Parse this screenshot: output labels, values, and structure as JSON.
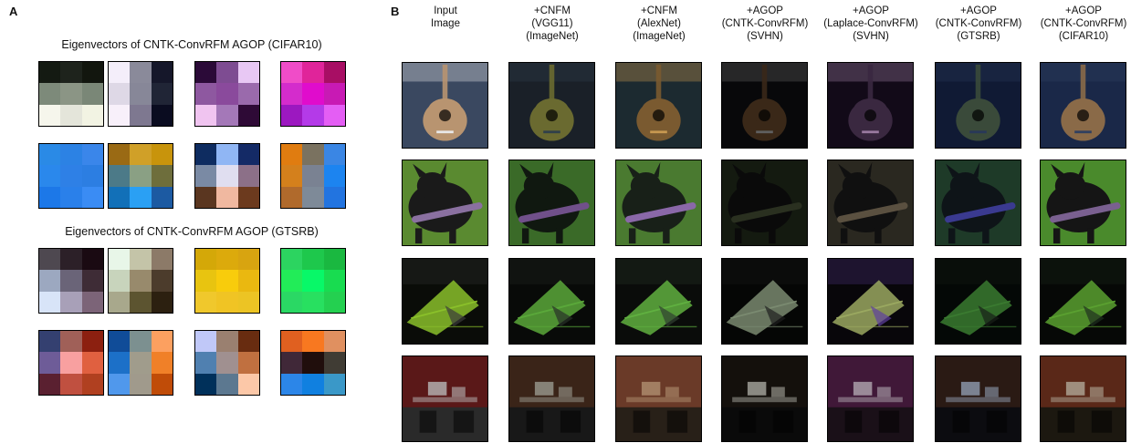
{
  "panel_a": {
    "letter": "A",
    "sections": [
      {
        "title": "Eigenvectors of CNTK-ConvRFM AGOP (CIFAR10)",
        "patches": [
          [
            "#141a12",
            "#1e231c",
            "#12160e",
            "#7d8a7a",
            "#8b9585",
            "#7a8777",
            "#f6f6ec",
            "#e4e5da",
            "#f2f3e3"
          ],
          [
            "#f4eefa",
            "#8a8a9a",
            "#15172a",
            "#ded8e6",
            "#878798",
            "#202536",
            "#f8f0fa",
            "#7e7890",
            "#0a0c20"
          ],
          [
            "#2b0a38",
            "#7e4c92",
            "#e8c8f4",
            "#8e58a0",
            "#8a4a9c",
            "#9a6aac",
            "#f0c4f0",
            "#a478b8",
            "#2e0a36"
          ],
          [
            "#f04cc8",
            "#e0249a",
            "#a80e64",
            "#d42ccc",
            "#e00ccc",
            "#c81ab4",
            "#9c18c0",
            "#b43ae8",
            "#e45ef4"
          ],
          [
            "#2a8ae6",
            "#2c82e4",
            "#3a86ea",
            "#2a88ec",
            "#2e80e6",
            "#2c7ee2",
            "#1c78e8",
            "#2a80ea",
            "#3a8cf4"
          ],
          [
            "#9a6a14",
            "#d0a028",
            "#c8940c",
            "#4c7a88",
            "#8aa084",
            "#6e6e3c",
            "#1270b8",
            "#2aa0f4",
            "#1c5aa2"
          ],
          [
            "#0e2c60",
            "#90b6f4",
            "#142a66",
            "#7a8aa4",
            "#e0def0",
            "#8c7088",
            "#5a3620",
            "#f0b8a0",
            "#6c3a1e"
          ],
          [
            "#e07c10",
            "#7a7260",
            "#3a86e4",
            "#d4801c",
            "#7a8292",
            "#1c84f0",
            "#b06a2c",
            "#7e8a98",
            "#2274e0"
          ]
        ]
      },
      {
        "title": "Eigenvectors of CNTK-ConvRFM AGOP (GTSRB)",
        "patches": [
          [
            "#4e4850",
            "#2c2028",
            "#1a0a12",
            "#9ca8c0",
            "#6a6478",
            "#3e2c36",
            "#d8e4f8",
            "#a8a0b8",
            "#7c6478"
          ],
          [
            "#e8f6e8",
            "#c4c4a8",
            "#8c7a68",
            "#c8d4bc",
            "#988a6c",
            "#4c3c2c",
            "#a8a88c",
            "#5c5430",
            "#2c2010"
          ],
          [
            "#d4a808",
            "#dcaa0c",
            "#d8a410",
            "#e8c410",
            "#f8cc0c",
            "#eab810",
            "#f0c82c",
            "#f0c424",
            "#ecc424"
          ],
          [
            "#2cd460",
            "#1ec84c",
            "#1ab840",
            "#22ec58",
            "#08f868",
            "#18dc50",
            "#2ad864",
            "#28e060",
            "#24d050"
          ],
          [
            "#344070",
            "#a06058",
            "#8c2010",
            "#6e5c98",
            "#f8a0a0",
            "#e06040",
            "#5a2030",
            "#c05040",
            "#b04020"
          ],
          [
            "#104c98",
            "#7c9090",
            "#fca060",
            "#1c70c8",
            "#a09c8c",
            "#f08028",
            "#5098ec",
            "#a09a8c",
            "#c04c08"
          ],
          [
            "#c0c8f8",
            "#9a8070",
            "#682c10",
            "#5080b0",
            "#a09090",
            "#c07040",
            "#00305a",
            "#5c7890",
            "#fcc8a8"
          ],
          [
            "#e06020",
            "#f87820",
            "#e09060",
            "#402838",
            "#200e0c",
            "#403c34",
            "#2c86e8",
            "#1080e0",
            "#3a98c8"
          ]
        ]
      }
    ]
  },
  "panel_b": {
    "letter": "B",
    "columns": [
      {
        "lines": [
          "Input",
          "Image"
        ]
      },
      {
        "lines": [
          "+CNFM",
          "(VGG11)",
          "(ImageNet)"
        ]
      },
      {
        "lines": [
          "+CNFM",
          "(AlexNet)",
          "(ImageNet)"
        ]
      },
      {
        "lines": [
          "+AGOP",
          "(CNTK-ConvRFM)",
          "(SVHN)"
        ]
      },
      {
        "lines": [
          "+AGOP",
          "(Laplace-ConvRFM)",
          "(SVHN)"
        ]
      },
      {
        "lines": [
          "+AGOP",
          "(CNTK-ConvRFM)",
          "(GTSRB)"
        ]
      },
      {
        "lines": [
          "+AGOP",
          "(CNTK-ConvRFM)",
          "(CIFAR10)"
        ]
      }
    ],
    "rows": [
      {
        "subject": "guitar",
        "tints": [
          {
            "bg": "#3a4860",
            "fg": "#b89470",
            "accent": "#e8e8e8"
          },
          {
            "bg": "#1a2028",
            "fg": "#6a6a30",
            "accent": "#30404a"
          },
          {
            "bg": "#1c2a30",
            "fg": "#7a5a30",
            "accent": "#c89850"
          },
          {
            "bg": "#08080a",
            "fg": "#3a2818",
            "accent": "#606060"
          },
          {
            "bg": "#120a18",
            "fg": "#3a2840",
            "accent": "#9a7aa0"
          },
          {
            "bg": "#101a34",
            "fg": "#3a4a3a",
            "accent": "#283858"
          },
          {
            "bg": "#1a2848",
            "fg": "#8a6a48",
            "accent": "#304060"
          }
        ]
      },
      {
        "subject": "dog",
        "tints": [
          {
            "bg": "#5a8a30",
            "fg": "#1a1a1a",
            "accent": "#8a70a0"
          },
          {
            "bg": "#3a6a28",
            "fg": "#101810",
            "accent": "#70508a"
          },
          {
            "bg": "#4a7a30",
            "fg": "#182018",
            "accent": "#8a68a8"
          },
          {
            "bg": "#141a10",
            "fg": "#0a0a0a",
            "accent": "#2a3020"
          },
          {
            "bg": "#2a2820",
            "fg": "#101010",
            "accent": "#5a5040"
          },
          {
            "bg": "#1e3a28",
            "fg": "#0e1418",
            "accent": "#3a3a90"
          },
          {
            "bg": "#4a8a2c",
            "fg": "#151515",
            "accent": "#7a6090"
          }
        ]
      },
      {
        "subject": "insect",
        "tints": [
          {
            "bg": "#0a0c08",
            "fg": "#8ac02a",
            "accent": "#3a3a3a"
          },
          {
            "bg": "#080a08",
            "fg": "#5aa83a",
            "accent": "#283028"
          },
          {
            "bg": "#0a0c0a",
            "fg": "#60b040",
            "accent": "#304030"
          },
          {
            "bg": "#050605",
            "fg": "#7a8a70",
            "accent": "#202020"
          },
          {
            "bg": "#08060a",
            "fg": "#9aa860",
            "accent": "#6040a0"
          },
          {
            "bg": "#040806",
            "fg": "#3a7a30",
            "accent": "#182018"
          },
          {
            "bg": "#060806",
            "fg": "#5aa030",
            "accent": "#203020"
          }
        ]
      },
      {
        "subject": "office",
        "tints": [
          {
            "bg": "#5a1818",
            "fg": "#2a2a2a",
            "accent": "#b8b8b8"
          },
          {
            "bg": "#3a2418",
            "fg": "#181818",
            "accent": "#9a9a90"
          },
          {
            "bg": "#6a3a28",
            "fg": "#282018",
            "accent": "#b09070"
          },
          {
            "bg": "#14100c",
            "fg": "#0a0a0a",
            "accent": "#a8a8a0"
          },
          {
            "bg": "#401838",
            "fg": "#1a1018",
            "accent": "#b0a8b0"
          },
          {
            "bg": "#2a1a14",
            "fg": "#0c0c10",
            "accent": "#909cb0"
          },
          {
            "bg": "#5a2818",
            "fg": "#1c1810",
            "accent": "#b0a898"
          }
        ]
      }
    ]
  }
}
